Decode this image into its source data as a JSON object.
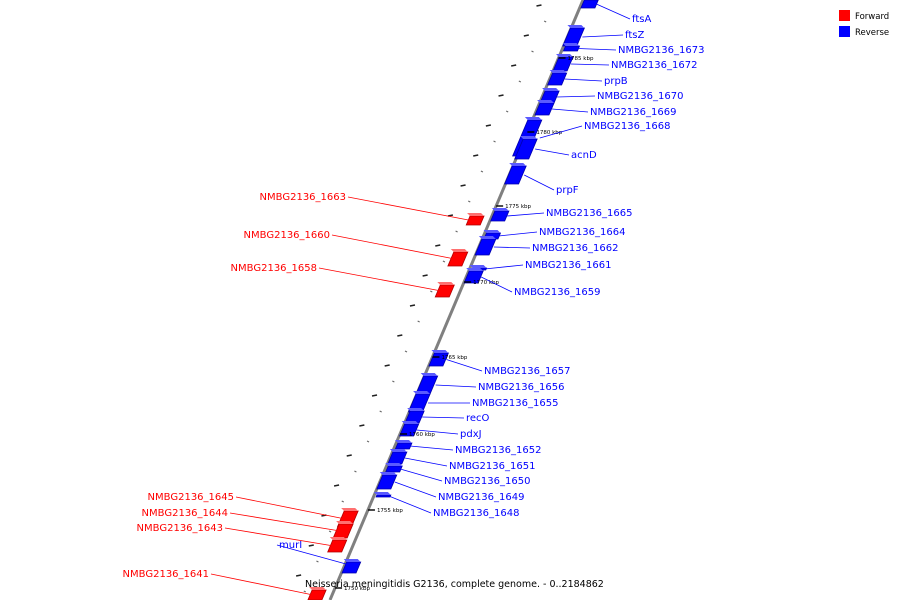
{
  "colors": {
    "forward": "#ff0000",
    "reverse": "#0000ff",
    "backbone": "#808080"
  },
  "legend": {
    "forward": "Forward",
    "reverse": "Reverse"
  },
  "caption": "Neisseria meningitidis G2136, complete genome. - 0..2184862",
  "ticks": [
    "1785 kbp",
    "1780 kbp",
    "1775 kbp",
    "1770 kbp",
    "1765 kbp",
    "1760 kbp",
    "1755 kbp",
    "1750 kbp"
  ],
  "genes": [
    {
      "name": "ftsA",
      "strand": "reverse"
    },
    {
      "name": "ftsZ",
      "strand": "reverse"
    },
    {
      "name": "NMBG2136_1673",
      "strand": "reverse"
    },
    {
      "name": "NMBG2136_1672",
      "strand": "reverse"
    },
    {
      "name": "prpB",
      "strand": "reverse"
    },
    {
      "name": "NMBG2136_1670",
      "strand": "reverse"
    },
    {
      "name": "NMBG2136_1669",
      "strand": "reverse"
    },
    {
      "name": "NMBG2136_1668",
      "strand": "reverse"
    },
    {
      "name": "acnD",
      "strand": "reverse"
    },
    {
      "name": "prpF",
      "strand": "reverse"
    },
    {
      "name": "NMBG2136_1665",
      "strand": "reverse"
    },
    {
      "name": "NMBG2136_1664",
      "strand": "reverse"
    },
    {
      "name": "NMBG2136_1662",
      "strand": "reverse"
    },
    {
      "name": "NMBG2136_1661",
      "strand": "reverse"
    },
    {
      "name": "NMBG2136_1659",
      "strand": "reverse"
    },
    {
      "name": "NMBG2136_1663",
      "strand": "forward"
    },
    {
      "name": "NMBG2136_1660",
      "strand": "forward"
    },
    {
      "name": "NMBG2136_1658",
      "strand": "forward"
    },
    {
      "name": "NMBG2136_1657",
      "strand": "reverse"
    },
    {
      "name": "NMBG2136_1656",
      "strand": "reverse"
    },
    {
      "name": "NMBG2136_1655",
      "strand": "reverse"
    },
    {
      "name": "recO",
      "strand": "reverse"
    },
    {
      "name": "pdxJ",
      "strand": "reverse"
    },
    {
      "name": "NMBG2136_1652",
      "strand": "reverse"
    },
    {
      "name": "NMBG2136_1651",
      "strand": "reverse"
    },
    {
      "name": "NMBG2136_1650",
      "strand": "reverse"
    },
    {
      "name": "NMBG2136_1649",
      "strand": "reverse"
    },
    {
      "name": "NMBG2136_1648",
      "strand": "reverse"
    },
    {
      "name": "NMBG2136_1645",
      "strand": "forward"
    },
    {
      "name": "NMBG2136_1644",
      "strand": "forward"
    },
    {
      "name": "NMBG2136_1643",
      "strand": "forward"
    },
    {
      "name": "murI",
      "strand": "reverse"
    },
    {
      "name": "NMBG2136_1641",
      "strand": "forward"
    }
  ]
}
